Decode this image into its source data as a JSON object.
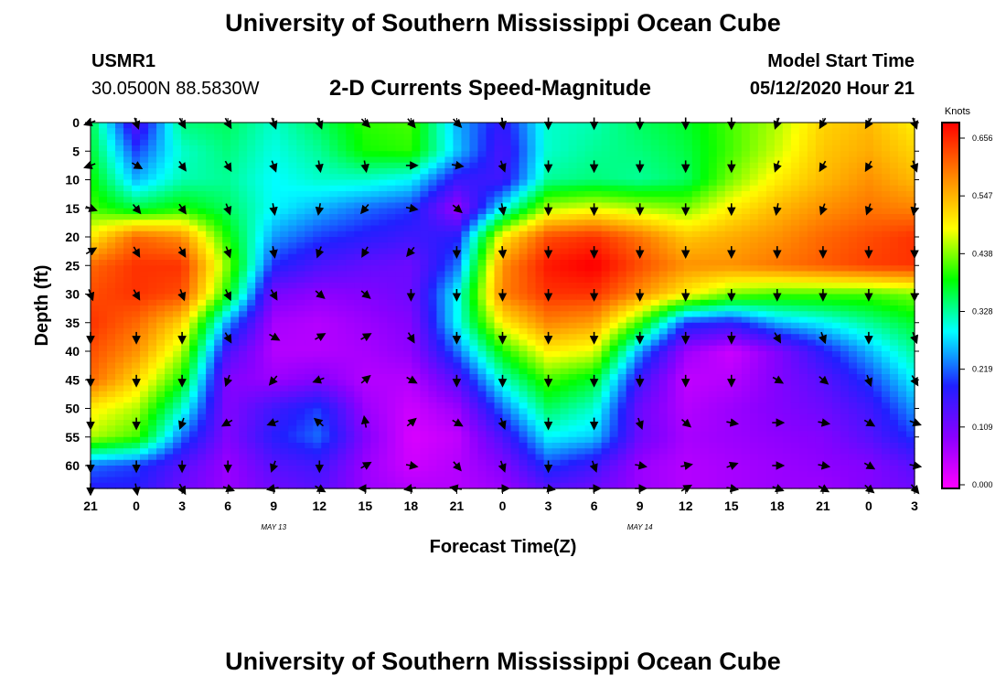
{
  "header": {
    "title": "University of Southern Mississippi Ocean Cube",
    "station_id": "USMR1",
    "station_coords": "30.0500N 88.5830W",
    "subtitle": "2-D Currents Speed-Magnitude",
    "start_label": "Model Start Time",
    "start_value": "05/12/2020 Hour 21"
  },
  "footer": {
    "title": "University of Southern Mississippi Ocean Cube"
  },
  "chart_data": {
    "type": "heatmap",
    "title": "2-D Currents Speed-Magnitude",
    "xlabel": "Forecast Time(Z)",
    "ylabel": "Depth (ft)",
    "x_tick_labels": [
      "21",
      "0",
      "3",
      "6",
      "9",
      "12",
      "15",
      "18",
      "21",
      "0",
      "3",
      "6",
      "9",
      "12",
      "15",
      "18",
      "21",
      "0",
      "3"
    ],
    "x_date_labels": [
      {
        "text": "MAY 13",
        "at_hour": 12
      },
      {
        "text": "MAY 14",
        "at_hour": 36
      }
    ],
    "xlim": [
      0,
      54
    ],
    "y_tick_labels": [
      "0",
      "5",
      "10",
      "15",
      "20",
      "25",
      "30",
      "35",
      "40",
      "45",
      "50",
      "55",
      "60"
    ],
    "ylim": [
      0,
      64
    ],
    "colorbar": {
      "label": "Knots",
      "ticks": [
        "0.656",
        "0.547",
        "0.438",
        "0.328",
        "0.219",
        "0.109",
        "0.000"
      ],
      "range": [
        0,
        0.656
      ],
      "colors": [
        "#ff00ff",
        "#8a00ff",
        "#2020ff",
        "#00ffff",
        "#00ff00",
        "#ffff00",
        "#ff8000",
        "#ff0000"
      ]
    },
    "speed_samples": {
      "hours": [
        0,
        3,
        6,
        9,
        12,
        15,
        18,
        21,
        24,
        27,
        30,
        33,
        36,
        39,
        42,
        45,
        48,
        51,
        54
      ],
      "depths": [
        0,
        5,
        10,
        15,
        20,
        25,
        30,
        35,
        40,
        45,
        50,
        55,
        60,
        64
      ],
      "values": [
        [
          0.35,
          0.14,
          0.33,
          0.34,
          0.3,
          0.34,
          0.39,
          0.4,
          0.25,
          0.17,
          0.3,
          0.31,
          0.34,
          0.36,
          0.4,
          0.44,
          0.5,
          0.52,
          0.48
        ],
        [
          0.36,
          0.2,
          0.3,
          0.33,
          0.29,
          0.32,
          0.38,
          0.39,
          0.26,
          0.15,
          0.3,
          0.32,
          0.33,
          0.35,
          0.4,
          0.45,
          0.51,
          0.53,
          0.5
        ],
        [
          0.38,
          0.25,
          0.31,
          0.32,
          0.28,
          0.3,
          0.3,
          0.28,
          0.17,
          0.16,
          0.32,
          0.33,
          0.32,
          0.34,
          0.42,
          0.48,
          0.52,
          0.55,
          0.52
        ],
        [
          0.4,
          0.35,
          0.38,
          0.34,
          0.28,
          0.25,
          0.22,
          0.2,
          0.08,
          0.28,
          0.44,
          0.46,
          0.44,
          0.42,
          0.48,
          0.52,
          0.55,
          0.57,
          0.56
        ],
        [
          0.48,
          0.58,
          0.55,
          0.38,
          0.24,
          0.2,
          0.18,
          0.16,
          0.18,
          0.48,
          0.6,
          0.62,
          0.57,
          0.51,
          0.53,
          0.55,
          0.58,
          0.6,
          0.62
        ],
        [
          0.58,
          0.62,
          0.62,
          0.42,
          0.19,
          0.15,
          0.13,
          0.12,
          0.22,
          0.55,
          0.64,
          0.66,
          0.6,
          0.55,
          0.55,
          0.57,
          0.59,
          0.61,
          0.62
        ],
        [
          0.6,
          0.62,
          0.6,
          0.38,
          0.11,
          0.09,
          0.1,
          0.12,
          0.28,
          0.56,
          0.62,
          0.62,
          0.55,
          0.48,
          0.42,
          0.4,
          0.4,
          0.4,
          0.42
        ],
        [
          0.62,
          0.58,
          0.5,
          0.24,
          0.07,
          0.06,
          0.08,
          0.1,
          0.28,
          0.48,
          0.56,
          0.54,
          0.4,
          0.2,
          0.18,
          0.25,
          0.28,
          0.32,
          0.36
        ],
        [
          0.6,
          0.55,
          0.44,
          0.15,
          0.06,
          0.06,
          0.07,
          0.09,
          0.22,
          0.38,
          0.48,
          0.46,
          0.24,
          0.08,
          0.04,
          0.1,
          0.18,
          0.25,
          0.32
        ],
        [
          0.58,
          0.5,
          0.38,
          0.1,
          0.08,
          0.1,
          0.06,
          0.06,
          0.14,
          0.3,
          0.4,
          0.36,
          0.16,
          0.05,
          0.06,
          0.1,
          0.14,
          0.2,
          0.28
        ],
        [
          0.48,
          0.44,
          0.3,
          0.1,
          0.16,
          0.2,
          0.08,
          0.04,
          0.08,
          0.22,
          0.34,
          0.3,
          0.12,
          0.06,
          0.08,
          0.1,
          0.12,
          0.16,
          0.24
        ],
        [
          0.44,
          0.4,
          0.22,
          0.1,
          0.18,
          0.22,
          0.1,
          0.03,
          0.05,
          0.15,
          0.28,
          0.26,
          0.12,
          0.07,
          0.08,
          0.09,
          0.1,
          0.14,
          0.2
        ],
        [
          0.22,
          0.2,
          0.14,
          0.08,
          0.14,
          0.16,
          0.08,
          0.04,
          0.06,
          0.1,
          0.2,
          0.16,
          0.08,
          0.06,
          0.07,
          0.08,
          0.09,
          0.1,
          0.14
        ],
        [
          0.18,
          0.18,
          0.12,
          0.08,
          0.12,
          0.14,
          0.08,
          0.06,
          0.06,
          0.08,
          0.14,
          0.12,
          0.08,
          0.06,
          0.07,
          0.08,
          0.08,
          0.1,
          0.12
        ]
      ]
    },
    "current_direction_deg": {
      "hours": [
        0,
        3,
        6,
        9,
        12,
        15,
        18,
        21,
        24,
        27,
        30,
        33,
        36,
        39,
        42,
        45,
        48,
        51,
        54
      ],
      "depths": [
        0,
        7.5,
        15,
        22.5,
        30,
        37.5,
        45,
        52.5,
        60,
        64
      ],
      "values": [
        [
          250,
          160,
          150,
          150,
          160,
          160,
          135,
          140,
          135,
          170,
          180,
          180,
          180,
          180,
          180,
          200,
          210,
          210,
          160
        ],
        [
          250,
          120,
          145,
          150,
          160,
          170,
          170,
          90,
          100,
          160,
          180,
          180,
          180,
          180,
          180,
          200,
          210,
          210,
          160
        ],
        [
          110,
          140,
          145,
          160,
          170,
          190,
          220,
          100,
          130,
          170,
          180,
          180,
          180,
          180,
          180,
          190,
          200,
          200,
          190
        ],
        [
          60,
          150,
          150,
          160,
          170,
          200,
          210,
          220,
          180,
          175,
          180,
          180,
          180,
          180,
          180,
          180,
          180,
          180,
          180
        ],
        [
          160,
          150,
          160,
          155,
          150,
          130,
          130,
          180,
          180,
          180,
          180,
          180,
          180,
          180,
          180,
          180,
          180,
          180,
          180
        ],
        [
          180,
          180,
          180,
          150,
          120,
          60,
          60,
          150,
          180,
          180,
          180,
          180,
          180,
          180,
          180,
          150,
          160,
          180,
          160
        ],
        [
          180,
          180,
          180,
          200,
          220,
          250,
          50,
          120,
          180,
          180,
          180,
          180,
          180,
          180,
          180,
          120,
          130,
          160,
          150
        ],
        [
          180,
          180,
          200,
          240,
          250,
          310,
          350,
          50,
          120,
          160,
          180,
          180,
          160,
          130,
          100,
          90,
          100,
          120,
          110
        ],
        [
          180,
          180,
          180,
          180,
          200,
          180,
          60,
          100,
          140,
          160,
          180,
          160,
          100,
          80,
          70,
          90,
          100,
          120,
          100
        ],
        [
          180,
          170,
          150,
          110,
          260,
          120,
          270,
          260,
          280,
          90,
          100,
          90,
          90,
          60,
          100,
          110,
          120,
          130,
          140
        ]
      ]
    }
  }
}
